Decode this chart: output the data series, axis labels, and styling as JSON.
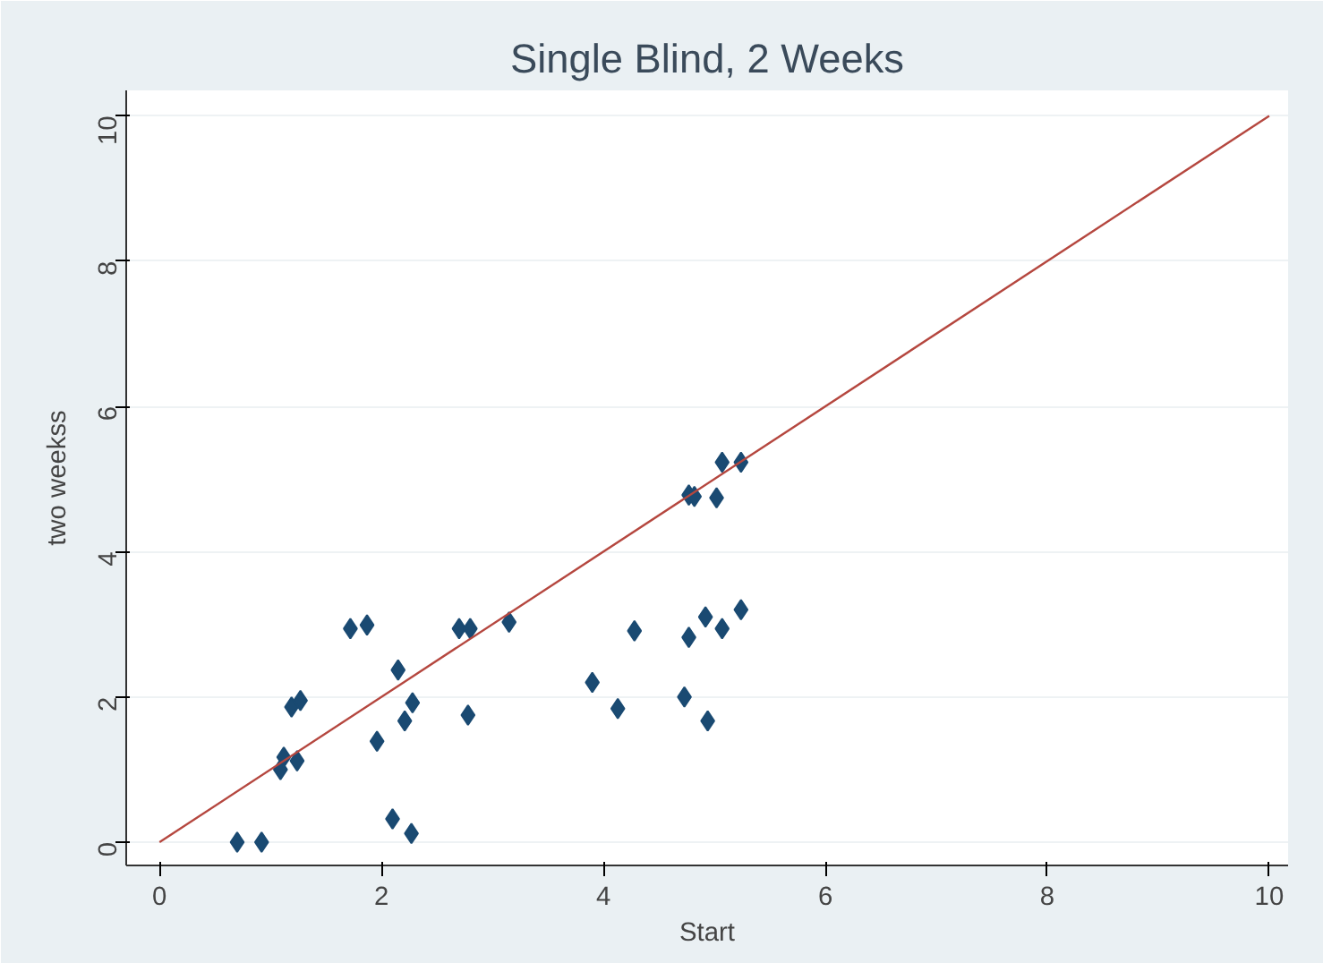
{
  "chart_data": {
    "type": "scatter",
    "title": "Single Blind, 2 Weeks",
    "xlabel": "Start",
    "ylabel": "two weekss",
    "xlim": [
      -0.3,
      10.17
    ],
    "ylim": [
      -0.32,
      10.35
    ],
    "xticks": [
      0,
      2,
      4,
      6,
      8,
      10
    ],
    "yticks": [
      0,
      2,
      4,
      6,
      8,
      10
    ],
    "grid": "y",
    "marker": "diamond",
    "series": [
      {
        "color": "#1a4a72",
        "x": [
          0.7,
          0.92,
          1.09,
          1.12,
          1.24,
          1.19,
          1.27,
          1.72,
          1.87,
          1.96,
          2.1,
          2.15,
          2.21,
          2.27,
          2.28,
          2.7,
          2.8,
          2.78,
          3.15,
          3.9,
          4.13,
          4.28,
          4.73,
          4.77,
          4.77,
          4.82,
          4.92,
          4.94,
          5.02,
          5.07,
          5.07,
          5.24,
          5.24
        ],
        "values": [
          0,
          0,
          1.0,
          1.17,
          1.12,
          1.86,
          1.95,
          2.94,
          2.99,
          1.39,
          0.32,
          2.37,
          1.67,
          0.12,
          1.92,
          2.94,
          2.94,
          1.75,
          3.03,
          2.2,
          1.84,
          2.91,
          2.0,
          2.82,
          4.78,
          4.76,
          3.1,
          1.67,
          4.74,
          2.94,
          5.23,
          5.23,
          3.2
        ]
      },
      {
        "type": "line",
        "marker": "none",
        "color": "#b5473f",
        "x": [
          0,
          10
        ],
        "values": [
          0,
          10
        ]
      }
    ]
  }
}
